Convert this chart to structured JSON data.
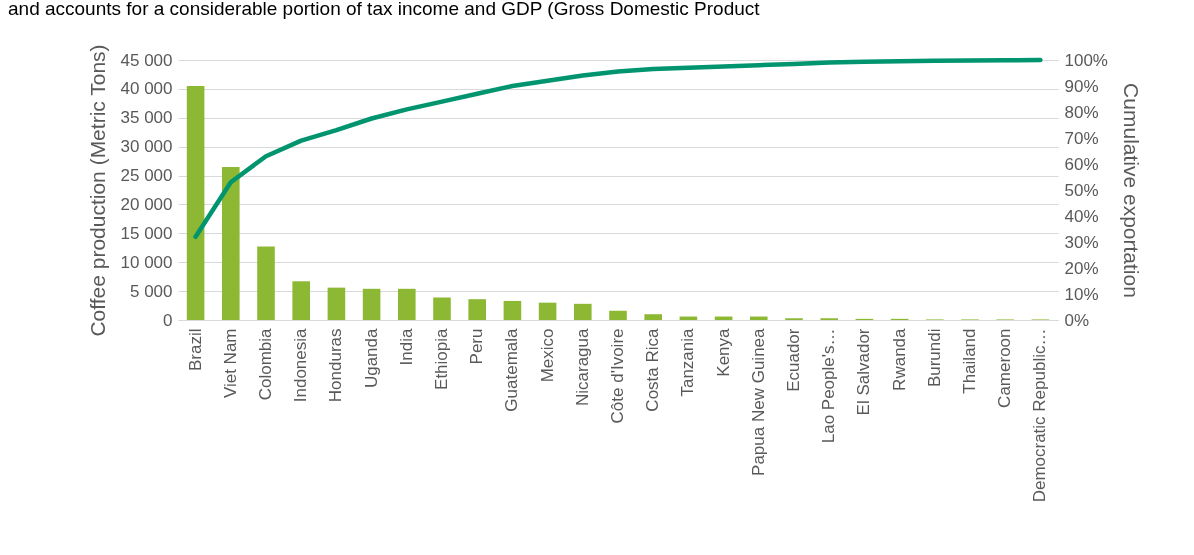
{
  "chart_data": {
    "type": "bar",
    "annotations": [
      "and accounts for a considerable portion of tax income and GDP (Gross Domestic Product"
    ],
    "ylabel": "Coffee production (Metric Tons)",
    "y2label": "Cumulative exportation",
    "categories": [
      "Brazil",
      "Viet Nam",
      "Colombia",
      "Indonesia",
      "Honduras",
      "Uganda",
      "India",
      "Ethiopia",
      "Peru",
      "Guatemala",
      "Mexico",
      "Nicaragua",
      "Côte d'Ivoire",
      "Costa Rica",
      "Tanzania",
      "Kenya",
      "Papua New Guinea",
      "Ecuador",
      "Lao People's…",
      "El Salvador",
      "Rwanda",
      "Burundi",
      "Thailand",
      "Cameroon",
      "Democratic Republic…"
    ],
    "series": [
      {
        "color": "#8db834",
        "values": [
          40500,
          26500,
          12700,
          6700,
          5600,
          5400,
          5400,
          3900,
          3600,
          3300,
          3000,
          2800,
          1600,
          1000,
          600,
          600,
          600,
          300,
          300,
          200,
          200,
          100,
          100,
          100,
          100
        ]
      },
      {
        "type": "line",
        "axis": "y2",
        "color": "#00956e",
        "values": [
          32,
          53,
          63,
          69,
          73,
          77.5,
          81,
          84,
          87,
          90,
          92,
          94,
          95.6,
          96.5,
          97,
          97.5,
          98,
          98.5,
          99,
          99.3,
          99.5,
          99.7,
          99.8,
          99.9,
          100
        ]
      }
    ],
    "ylim": [
      0,
      45000
    ],
    "yticks": [
      0,
      {
        "value": 5000,
        "label": "5 000"
      },
      {
        "value": 10000,
        "label": "10 000"
      },
      {
        "value": 15000,
        "label": "15 000"
      },
      {
        "value": 20000,
        "label": "20 000"
      },
      {
        "value": 25000,
        "label": "25 000"
      },
      {
        "value": 30000,
        "label": "30 000"
      },
      {
        "value": 35000,
        "label": "35 000"
      },
      {
        "value": 40000,
        "label": "40 000"
      },
      {
        "value": 45000,
        "label": "45 000"
      }
    ],
    "y2lim": [
      0,
      100
    ],
    "y2ticks": [
      {
        "value": 0,
        "label": "0%"
      },
      {
        "value": 10,
        "label": "10%"
      },
      {
        "value": 20,
        "label": "20%"
      },
      {
        "value": 30,
        "label": "30%"
      },
      {
        "value": 40,
        "label": "40%"
      },
      {
        "value": 50,
        "label": "50%"
      },
      {
        "value": 60,
        "label": "60%"
      },
      {
        "value": 70,
        "label": "70%"
      },
      {
        "value": 80,
        "label": "80%"
      },
      {
        "value": 90,
        "label": "90%"
      },
      {
        "value": 100,
        "label": "100%"
      }
    ],
    "grid": "y",
    "line_style": "solid"
  }
}
